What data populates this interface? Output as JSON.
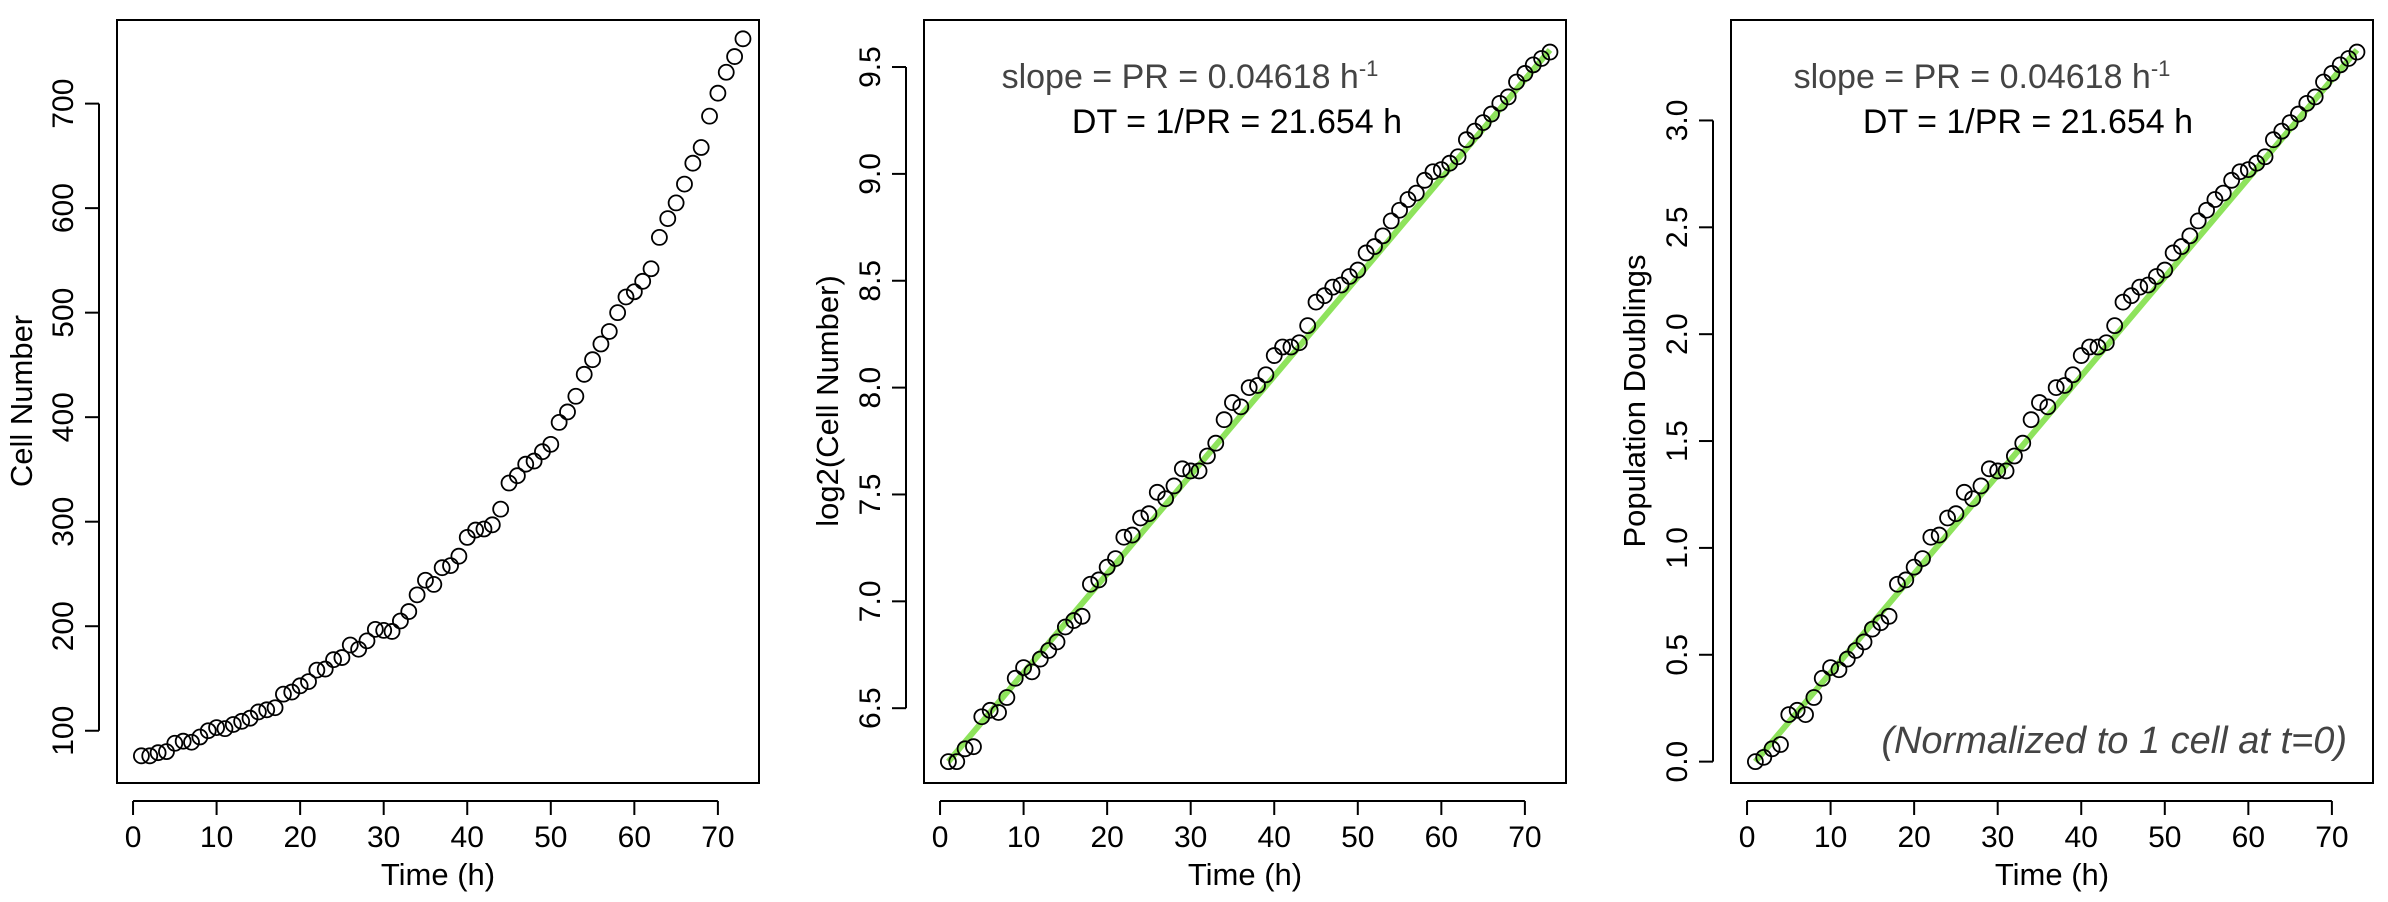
{
  "chart_data": [
    {
      "type": "scatter",
      "xlabel": "Time (h)",
      "ylabel": "Cell Number",
      "xlim": [
        -1.92,
        74.92
      ],
      "ylim": [
        50,
        780
      ],
      "xticks": [
        0,
        10,
        20,
        30,
        40,
        50,
        60,
        70
      ],
      "yticks": [
        100,
        200,
        300,
        400,
        500,
        600,
        700
      ],
      "x": [
        1,
        2,
        3,
        4,
        5,
        6,
        7,
        8,
        9,
        10,
        11,
        12,
        13,
        14,
        15,
        16,
        17,
        18,
        19,
        20,
        21,
        22,
        23,
        24,
        25,
        26,
        27,
        28,
        29,
        30,
        31,
        32,
        33,
        34,
        35,
        36,
        37,
        38,
        39,
        40,
        41,
        42,
        43,
        44,
        45,
        46,
        47,
        48,
        49,
        50,
        51,
        52,
        53,
        54,
        55,
        56,
        57,
        58,
        59,
        60,
        61,
        62,
        63,
        64,
        65,
        66,
        67,
        68,
        69,
        70,
        71,
        72,
        73
      ],
      "y": [
        76,
        76,
        79,
        80,
        88,
        90,
        89,
        94,
        100,
        103,
        102,
        106,
        109,
        112,
        118,
        120,
        122,
        135,
        137,
        143,
        147,
        158,
        159,
        168,
        170,
        182,
        178,
        186,
        197,
        196,
        195,
        205,
        214,
        230,
        244,
        240,
        256,
        258,
        267,
        285,
        292,
        293,
        297,
        312,
        337,
        344,
        355,
        358,
        367,
        374,
        395,
        405,
        420,
        441,
        455,
        470,
        482,
        500,
        515,
        520,
        530,
        542,
        572,
        590,
        605,
        623,
        643,
        658,
        688,
        710,
        730,
        745,
        762
      ],
      "annotations": []
    },
    {
      "type": "scatter",
      "xlabel": "Time (h)",
      "ylabel": "log2(Cell Number)",
      "xlim": [
        -1.92,
        74.92
      ],
      "ylim": [
        6.15,
        9.72
      ],
      "xticks": [
        0,
        10,
        20,
        30,
        40,
        50,
        60,
        70
      ],
      "yticks": [
        6.5,
        7.0,
        7.5,
        8.0,
        8.5,
        9.0,
        9.5
      ],
      "x": [
        1,
        2,
        3,
        4,
        5,
        6,
        7,
        8,
        9,
        10,
        11,
        12,
        13,
        14,
        15,
        16,
        17,
        18,
        19,
        20,
        21,
        22,
        23,
        24,
        25,
        26,
        27,
        28,
        29,
        30,
        31,
        32,
        33,
        34,
        35,
        36,
        37,
        38,
        39,
        40,
        41,
        42,
        43,
        44,
        45,
        46,
        47,
        48,
        49,
        50,
        51,
        52,
        53,
        54,
        55,
        56,
        57,
        58,
        59,
        60,
        61,
        62,
        63,
        64,
        65,
        66,
        67,
        68,
        69,
        70,
        71,
        72,
        73
      ],
      "y": [
        6.25,
        6.25,
        6.31,
        6.32,
        6.46,
        6.49,
        6.48,
        6.55,
        6.64,
        6.69,
        6.67,
        6.73,
        6.77,
        6.81,
        6.88,
        6.91,
        6.93,
        7.08,
        7.1,
        7.16,
        7.2,
        7.3,
        7.31,
        7.39,
        7.41,
        7.51,
        7.48,
        7.54,
        7.62,
        7.61,
        7.61,
        7.68,
        7.74,
        7.85,
        7.93,
        7.91,
        8.0,
        8.01,
        8.06,
        8.15,
        8.19,
        8.19,
        8.21,
        8.29,
        8.4,
        8.43,
        8.47,
        8.48,
        8.52,
        8.55,
        8.63,
        8.66,
        8.71,
        8.78,
        8.83,
        8.88,
        8.91,
        8.97,
        9.01,
        9.02,
        9.05,
        9.08,
        9.16,
        9.2,
        9.24,
        9.28,
        9.33,
        9.36,
        9.43,
        9.47,
        9.51,
        9.54,
        9.57
      ],
      "fit_line": {
        "x": [
          1,
          73
        ],
        "y": [
          6.25,
          9.58
        ],
        "color": "#8ee35c"
      },
      "annotations": [
        "slope = PR = 0.04618 h",
        "-1",
        "DT = 1/PR = 21.654 h"
      ]
    },
    {
      "type": "scatter",
      "xlabel": "Time (h)",
      "ylabel": "Population Doublings",
      "xlim": [
        -1.92,
        74.92
      ],
      "ylim": [
        -0.1,
        3.47
      ],
      "xticks": [
        0,
        10,
        20,
        30,
        40,
        50,
        60,
        70
      ],
      "yticks": [
        0.0,
        0.5,
        1.0,
        1.5,
        2.0,
        2.5,
        3.0
      ],
      "x": [
        1,
        2,
        3,
        4,
        5,
        6,
        7,
        8,
        9,
        10,
        11,
        12,
        13,
        14,
        15,
        16,
        17,
        18,
        19,
        20,
        21,
        22,
        23,
        24,
        25,
        26,
        27,
        28,
        29,
        30,
        31,
        32,
        33,
        34,
        35,
        36,
        37,
        38,
        39,
        40,
        41,
        42,
        43,
        44,
        45,
        46,
        47,
        48,
        49,
        50,
        51,
        52,
        53,
        54,
        55,
        56,
        57,
        58,
        59,
        60,
        61,
        62,
        63,
        64,
        65,
        66,
        67,
        68,
        69,
        70,
        71,
        72,
        73
      ],
      "y": [
        0.0,
        0.02,
        0.06,
        0.08,
        0.22,
        0.24,
        0.22,
        0.3,
        0.39,
        0.44,
        0.43,
        0.48,
        0.52,
        0.56,
        0.62,
        0.65,
        0.68,
        0.83,
        0.85,
        0.91,
        0.95,
        1.05,
        1.06,
        1.14,
        1.16,
        1.26,
        1.23,
        1.29,
        1.37,
        1.36,
        1.36,
        1.43,
        1.49,
        1.6,
        1.68,
        1.66,
        1.75,
        1.76,
        1.81,
        1.9,
        1.94,
        1.94,
        1.96,
        2.04,
        2.15,
        2.18,
        2.22,
        2.23,
        2.27,
        2.3,
        2.38,
        2.41,
        2.46,
        2.53,
        2.58,
        2.63,
        2.66,
        2.72,
        2.76,
        2.77,
        2.8,
        2.83,
        2.91,
        2.95,
        2.99,
        3.03,
        3.08,
        3.11,
        3.18,
        3.22,
        3.26,
        3.29,
        3.32
      ],
      "fit_line": {
        "x": [
          1,
          73
        ],
        "y": [
          0.0,
          3.33
        ],
        "color": "#8ee35c"
      },
      "annotations": [
        "slope = PR = 0.04618 h",
        "-1",
        "DT = 1/PR = 21.654 h",
        "(Normalized to 1 cell at t=0)"
      ]
    }
  ],
  "marker_color": "#000000"
}
